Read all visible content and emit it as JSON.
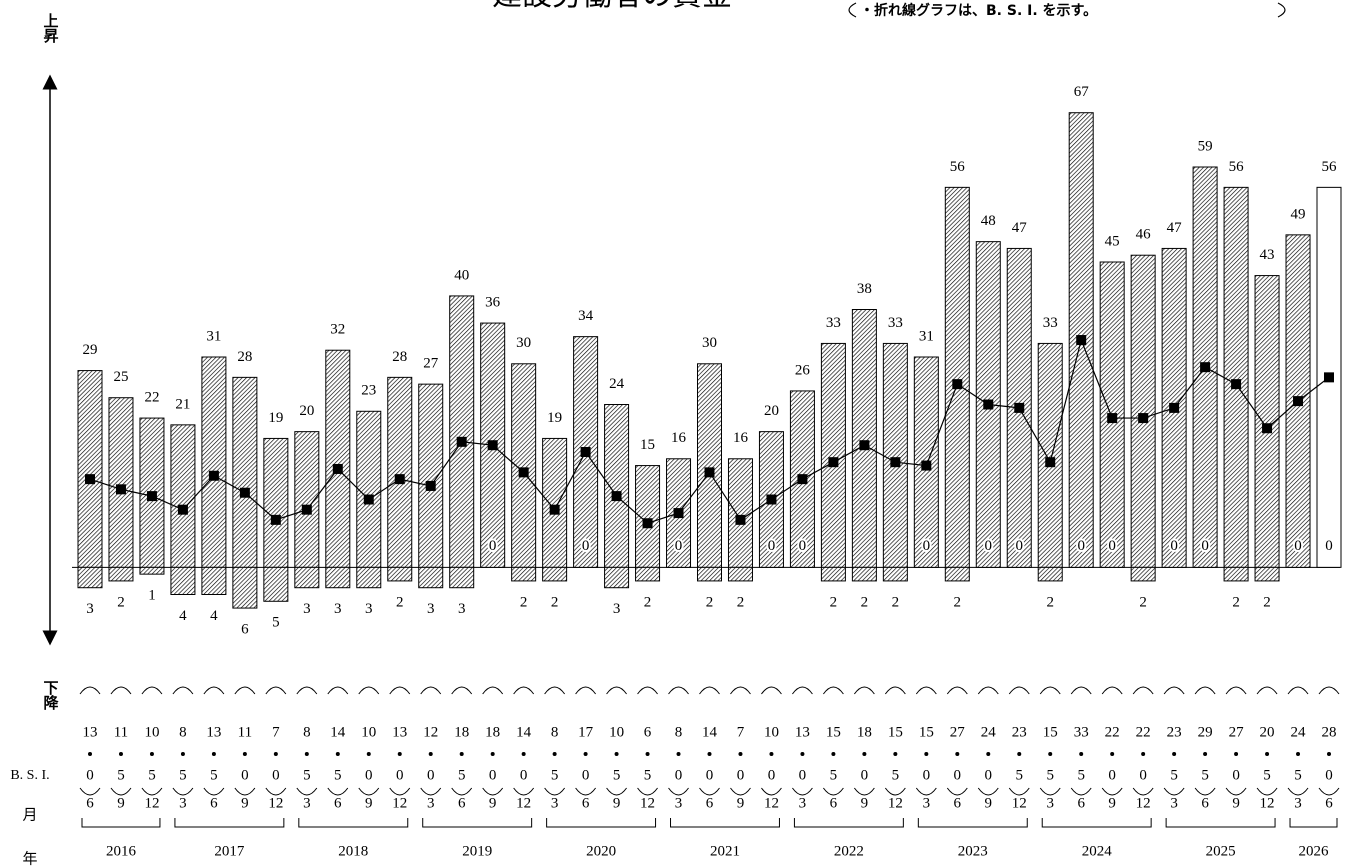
{
  "chart_data": {
    "type": "bar",
    "title": "建設労働者の賃金",
    "note": "・折れ線グラフは、B. S. I. を示す。",
    "up_label": "上昇",
    "down_label": "下降",
    "row_labels": {
      "bsi": "B. S. I.",
      "month": "月",
      "year": "年"
    },
    "categories": [
      "6",
      "9",
      "12",
      "3",
      "6",
      "9",
      "12",
      "3",
      "6",
      "9",
      "12",
      "3",
      "6",
      "9",
      "12",
      "3",
      "6",
      "9",
      "12",
      "3",
      "6",
      "9",
      "12",
      "3",
      "6",
      "9",
      "12",
      "3",
      "6",
      "9",
      "12",
      "3",
      "6",
      "9",
      "12",
      "3",
      "6",
      "9",
      "12",
      "3",
      "6"
    ],
    "years": [
      "2016",
      "2017",
      "2018",
      "2019",
      "2020",
      "2021",
      "2022",
      "2023",
      "2024",
      "2025",
      "2026"
    ],
    "ylim": [
      -11,
      73
    ],
    "last_outlined": true,
    "series": [
      {
        "color": "#000000",
        "values": [
          29,
          25,
          22,
          21,
          31,
          28,
          19,
          20,
          32,
          23,
          28,
          27,
          40,
          36,
          30,
          19,
          34,
          24,
          15,
          16,
          30,
          16,
          20,
          26,
          33,
          38,
          33,
          31,
          56,
          48,
          47,
          33,
          67,
          45,
          46,
          47,
          59,
          56,
          43,
          49,
          56
        ]
      },
      {
        "color": "#000000",
        "values": [
          3,
          2,
          1,
          4,
          4,
          6,
          5,
          3,
          3,
          3,
          2,
          3,
          3,
          0,
          2,
          2,
          0,
          3,
          2,
          0,
          2,
          2,
          0,
          0,
          2,
          2,
          2,
          0,
          2,
          0,
          0,
          2,
          0,
          0,
          2,
          0,
          0,
          2,
          2,
          0,
          0
        ]
      },
      {
        "type": "line",
        "color": "#000000",
        "values": [
          13.0,
          11.5,
          10.5,
          8.5,
          13.5,
          11.0,
          7.0,
          8.5,
          14.5,
          10.0,
          13.0,
          12.0,
          18.5,
          18.0,
          14.0,
          8.5,
          17.0,
          10.5,
          6.5,
          8.0,
          14.0,
          7.0,
          10.0,
          13.0,
          15.5,
          18.0,
          15.5,
          15.0,
          27.0,
          24.0,
          23.5,
          15.5,
          33.5,
          22.0,
          22.0,
          23.5,
          29.5,
          27.0,
          20.5,
          24.5,
          28.0
        ],
        "value_labels": [
          [
            "13",
            "0"
          ],
          [
            "11",
            "5"
          ],
          [
            "10",
            "5"
          ],
          [
            "8",
            "5"
          ],
          [
            "13",
            "5"
          ],
          [
            "11",
            "0"
          ],
          [
            "7",
            "0"
          ],
          [
            "8",
            "5"
          ],
          [
            "14",
            "5"
          ],
          [
            "10",
            "0"
          ],
          [
            "13",
            "0"
          ],
          [
            "12",
            "0"
          ],
          [
            "18",
            "5"
          ],
          [
            "18",
            "0"
          ],
          [
            "14",
            "0"
          ],
          [
            "8",
            "5"
          ],
          [
            "17",
            "0"
          ],
          [
            "10",
            "5"
          ],
          [
            "6",
            "5"
          ],
          [
            "8",
            "0"
          ],
          [
            "14",
            "0"
          ],
          [
            "7",
            "0"
          ],
          [
            "10",
            "0"
          ],
          [
            "13",
            "0"
          ],
          [
            "15",
            "5"
          ],
          [
            "18",
            "0"
          ],
          [
            "15",
            "5"
          ],
          [
            "15",
            "0"
          ],
          [
            "27",
            "0"
          ],
          [
            "24",
            "0"
          ],
          [
            "23",
            "5"
          ],
          [
            "15",
            "5"
          ],
          [
            "33",
            "5"
          ],
          [
            "22",
            "0"
          ],
          [
            "22",
            "0"
          ],
          [
            "23",
            "5"
          ],
          [
            "29",
            "5"
          ],
          [
            "27",
            "0"
          ],
          [
            "20",
            "5"
          ],
          [
            "24",
            "5"
          ],
          [
            "28",
            "0"
          ]
        ]
      }
    ]
  }
}
